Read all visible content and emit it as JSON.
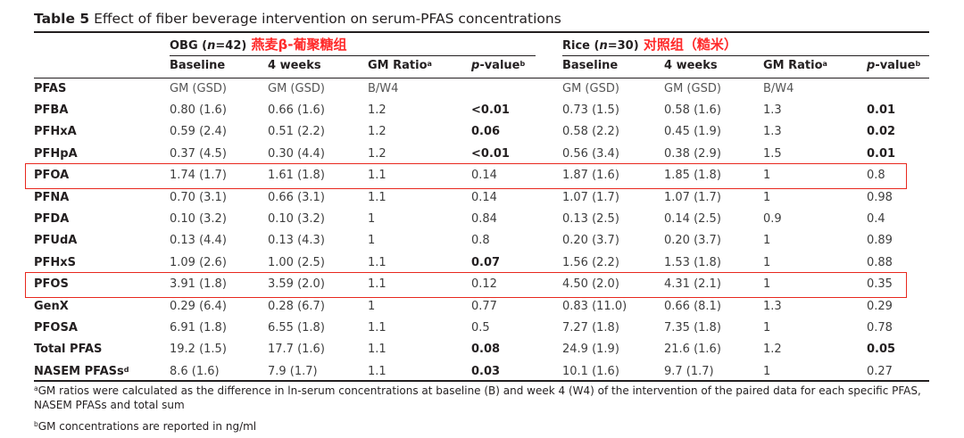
{
  "title": {
    "label": "Table 5",
    "text": "Effect of fiber beverage intervention on serum-PFAS concentrations"
  },
  "groups": [
    {
      "name": "OBG (",
      "n_italic": "n",
      "n_rest": "=42)",
      "cn": "燕麦β-葡聚糖组"
    },
    {
      "name": "Rice (",
      "n_italic": "n",
      "n_rest": "=30)",
      "cn": "对照组（糙米）"
    }
  ],
  "col_headers": [
    {
      "text": "Baseline",
      "sup": ""
    },
    {
      "text": "4 weeks",
      "sup": ""
    },
    {
      "text": "GM Ratio",
      "sup": "a"
    },
    {
      "text": "p",
      "rest": "-value",
      "sup": "b",
      "italic": true
    },
    {
      "text": "Baseline",
      "sup": ""
    },
    {
      "text": "4 weeks",
      "sup": ""
    },
    {
      "text": "GM Ratio",
      "sup": "a"
    },
    {
      "text": "p",
      "rest": "-value",
      "sup": "b",
      "italic": true
    }
  ],
  "unit_row": {
    "label": "PFAS",
    "cells": [
      "GM (GSD)",
      "GM (GSD)",
      "B/W4",
      "",
      "GM (GSD)",
      "GM (GSD)",
      "B/W4",
      ""
    ]
  },
  "rows": [
    {
      "label": "PFBA",
      "sup": "",
      "cells": [
        "0.80 (1.6)",
        "0.66 (1.6)",
        "1.2",
        "<0.01",
        "0.73 (1.5)",
        "0.58 (1.6)",
        "1.3",
        "0.01"
      ],
      "bold": [
        3,
        7
      ]
    },
    {
      "label": "PFHxA",
      "sup": "",
      "cells": [
        "0.59 (2.4)",
        "0.51 (2.2)",
        "1.2",
        "0.06",
        "0.58 (2.2)",
        "0.45 (1.9)",
        "1.3",
        "0.02"
      ],
      "bold": [
        3,
        7
      ]
    },
    {
      "label": "PFHpA",
      "sup": "",
      "cells": [
        "0.37 (4.5)",
        "0.30 (4.4)",
        "1.2",
        "<0.01",
        "0.56 (3.4)",
        "0.38 (2.9)",
        "1.5",
        "0.01"
      ],
      "bold": [
        3,
        7
      ]
    },
    {
      "label": "PFOA",
      "sup": "",
      "cells": [
        "1.74 (1.7)",
        "1.61 (1.8)",
        "1.1",
        "0.14",
        "1.87 (1.6)",
        "1.85 (1.8)",
        "1",
        "0.8"
      ],
      "bold": [],
      "highlight": true
    },
    {
      "label": "PFNA",
      "sup": "",
      "cells": [
        "0.70 (3.1)",
        "0.66 (3.1)",
        "1.1",
        "0.14",
        "1.07 (1.7)",
        "1.07 (1.7)",
        "1",
        "0.98"
      ],
      "bold": []
    },
    {
      "label": "PFDA",
      "sup": "",
      "cells": [
        "0.10 (3.2)",
        "0.10 (3.2)",
        "1",
        "0.84",
        "0.13 (2.5)",
        "0.14 (2.5)",
        "0.9",
        "0.4"
      ],
      "bold": []
    },
    {
      "label": "PFUdA",
      "sup": "",
      "cells": [
        "0.13 (4.4)",
        "0.13 (4.3)",
        "1",
        "0.8",
        "0.20 (3.7)",
        "0.20 (3.7)",
        "1",
        "0.89"
      ],
      "bold": []
    },
    {
      "label": "PFHxS",
      "sup": "",
      "cells": [
        "1.09 (2.6)",
        "1.00 (2.5)",
        "1.1",
        "0.07",
        "1.56 (2.2)",
        "1.53 (1.8)",
        "1",
        "0.88"
      ],
      "bold": [
        3
      ]
    },
    {
      "label": "PFOS",
      "sup": "",
      "cells": [
        "3.91 (1.8)",
        "3.59 (2.0)",
        "1.1",
        "0.12",
        "4.50 (2.0)",
        "4.31 (2.1)",
        "1",
        "0.35"
      ],
      "bold": [],
      "highlight": true
    },
    {
      "label": "GenX",
      "sup": "",
      "cells": [
        "0.29 (6.4)",
        "0.28 (6.7)",
        "1",
        "0.77",
        "0.83 (11.0)",
        "0.66 (8.1)",
        "1.3",
        "0.29"
      ],
      "bold": []
    },
    {
      "label": "PFOSA",
      "sup": "",
      "cells": [
        "6.91 (1.8)",
        "6.55 (1.8)",
        "1.1",
        "0.5",
        "7.27 (1.8)",
        "7.35 (1.8)",
        "1",
        "0.78"
      ],
      "bold": []
    },
    {
      "label": "Total PFAS",
      "sup": "",
      "cells": [
        "19.2 (1.5)",
        "17.7 (1.6)",
        "1.1",
        "0.08",
        "24.9 (1.9)",
        "21.6 (1.6)",
        "1.2",
        "0.05"
      ],
      "bold": [
        3,
        7
      ]
    },
    {
      "label": "NASEM PFASs",
      "sup": "d",
      "cells": [
        "8.6 (1.6)",
        "7.9 (1.7)",
        "1.1",
        "0.03",
        "10.1 (1.6)",
        "9.7 (1.7)",
        "1",
        "0.27"
      ],
      "bold": [
        3
      ]
    }
  ],
  "footnotes": [
    {
      "sup": "a",
      "text": "GM ratios were calculated as the difference in ln-serum concentrations at baseline (B) and week 4 (W4) of the intervention of the paired data for each specific PFAS,"
    },
    {
      "sup": "",
      "text": "NASEM PFASs and total sum"
    },
    {
      "sup": "b",
      "text": "GM concentrations are reported in ng/ml"
    }
  ],
  "colors": {
    "highlight_box": "#e8281e",
    "annotation_text": "#ff2a2a"
  }
}
